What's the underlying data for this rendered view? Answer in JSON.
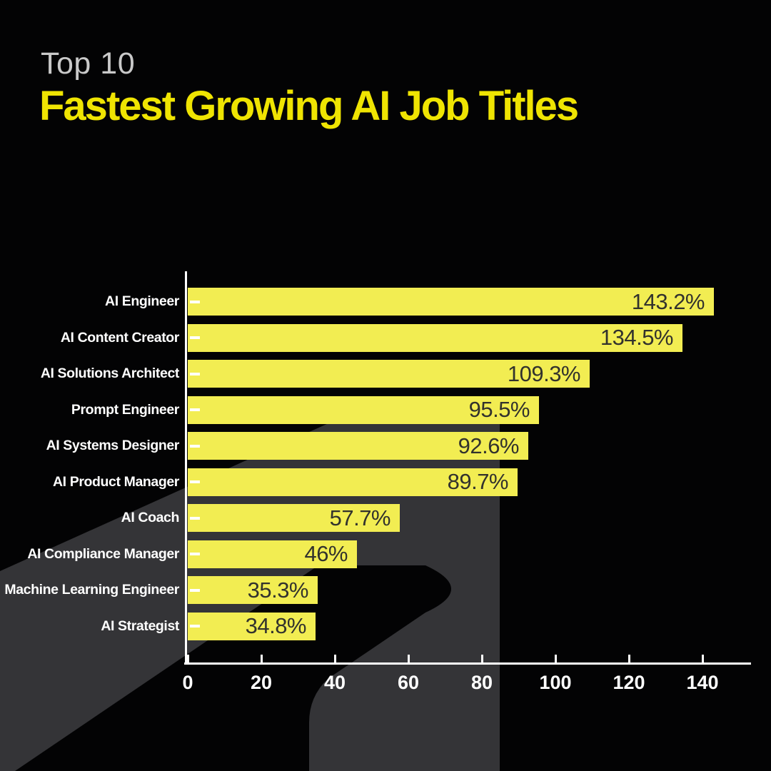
{
  "title": {
    "eyebrow": "Top 10",
    "main": "Fastest Growing AI Job Titles"
  },
  "colors": {
    "background": "#030304",
    "bar_yellow": "#f2ed52",
    "title_yellow": "#efe402",
    "eyebrow_gray": "#c9c9c9",
    "axis_white": "#ffffff",
    "bar_value_text": "#32322d",
    "watermark_gray": "#343437"
  },
  "watermark": {
    "name": "abstract-letter-a-backdrop",
    "color": "#343437"
  },
  "chart_data": {
    "type": "bar",
    "orientation": "horizontal",
    "title": "Fastest Growing AI Job Titles",
    "categories": [
      "AI Engineer",
      "AI Content Creator",
      "AI Solutions Architect",
      "Prompt Engineer",
      "AI Systems Designer",
      "AI Product Manager",
      "AI Coach",
      "AI Compliance Manager",
      "Machine Learning Engineer",
      "AI Strategist"
    ],
    "values": [
      143.2,
      134.5,
      109.3,
      95.5,
      92.6,
      89.7,
      57.7,
      46,
      35.3,
      34.8
    ],
    "value_labels": [
      "143.2%",
      "134.5%",
      "109.3%",
      "95.5%",
      "92.6%",
      "89.7%",
      "57.7%",
      "46%",
      "35.3%",
      "34.8%"
    ],
    "xlabel": "",
    "ylabel": "",
    "xlim": [
      0,
      150
    ],
    "x_ticks": [
      0,
      20,
      40,
      60,
      80,
      100,
      120,
      140
    ],
    "grid": false,
    "legend": "none",
    "bar_color": "#f2ed52",
    "value_label_position": "inside-right"
  }
}
